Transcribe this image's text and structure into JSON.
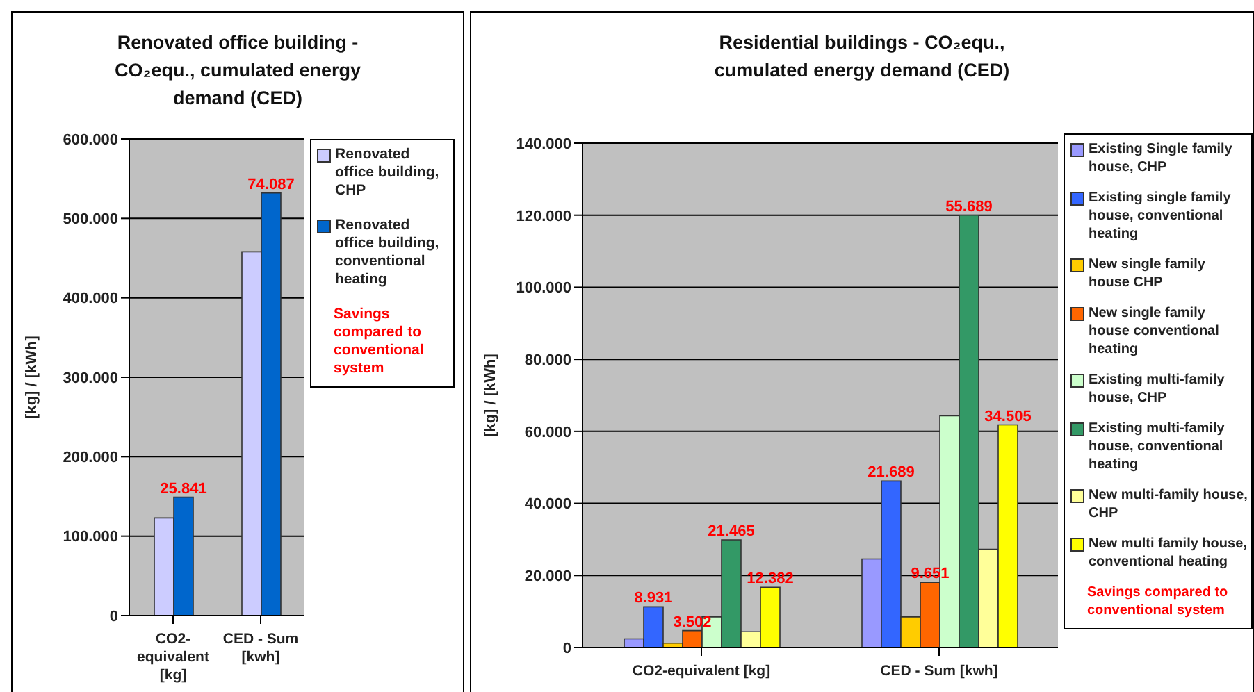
{
  "chart_data": [
    {
      "type": "bar",
      "title": "Renovated office building - CO₂equ., cumulated energy demand (CED)",
      "ylabel": "[kg] / [kWh]",
      "categories": [
        "CO2-equivalent [kg]",
        "CED - Sum [kwh]"
      ],
      "series": [
        {
          "name": "Renovated office building, CHP",
          "color": "#ccccff",
          "values": [
            123000,
            458000
          ]
        },
        {
          "name": "Renovated office building, conventional heating",
          "color": "#0066cc",
          "values": [
            149000,
            532000
          ]
        }
      ],
      "ylim": [
        0,
        600000
      ],
      "yticks": [
        0,
        {
          "value": 100000,
          "label": "100.000"
        },
        {
          "value": 200000,
          "label": "200.000"
        },
        {
          "value": 300000,
          "label": "300.000"
        },
        {
          "value": 400000,
          "label": "400.000"
        },
        {
          "value": 500000,
          "label": "500.000"
        },
        {
          "value": 600000,
          "label": "600.000"
        }
      ],
      "grid": "y",
      "legend": "right",
      "annotations": [
        {
          "text": "25.841",
          "x": "CO2-equivalent [kg]",
          "y": 149000
        },
        {
          "text": "74.087",
          "x": "CED - Sum [kwh]",
          "y": 532000
        },
        "Savings compared to conventional system"
      ]
    },
    {
      "type": "bar",
      "title": "Residential buildings - CO₂equ., cumulated energy demand (CED)",
      "ylabel": "[kg] / [kWh]",
      "categories": [
        "CO2-equivalent [kg]",
        "CED - Sum [kwh]"
      ],
      "series": [
        {
          "name": "Existing Single family house, CHP",
          "color": "#9999ff",
          "values": [
            2400,
            24600
          ]
        },
        {
          "name": "Existing single family house, conventional heating",
          "color": "#3366ff",
          "values": [
            11300,
            46200
          ]
        },
        {
          "name": "New single family house CHP",
          "color": "#ffcc00",
          "values": [
            1200,
            8500
          ]
        },
        {
          "name": "New single family house conventional heating",
          "color": "#ff6600",
          "values": [
            4700,
            18100
          ]
        },
        {
          "name": "Existing multi-family house, CHP",
          "color": "#ccffcc",
          "values": [
            8500,
            64300
          ]
        },
        {
          "name": "Existing multi-family house, conventional heating",
          "color": "#339966",
          "values": [
            29900,
            120000
          ]
        },
        {
          "name": "New multi-family house, CHP",
          "color": "#ffff99",
          "values": [
            4400,
            27300
          ]
        },
        {
          "name": "New multi family house, conventional heating",
          "color": "#ffff00",
          "values": [
            16700,
            61800
          ]
        }
      ],
      "ylim": [
        0,
        140000
      ],
      "yticks": [
        0,
        {
          "value": 20000,
          "label": "20.000"
        },
        {
          "value": 40000,
          "label": "40.000"
        },
        {
          "value": 60000,
          "label": "60.000"
        },
        {
          "value": 80000,
          "label": "80.000"
        },
        {
          "value": 100000,
          "label": "100.000"
        },
        {
          "value": 120000,
          "label": "120.000"
        },
        {
          "value": 140000,
          "label": "140.000"
        }
      ],
      "grid": "y",
      "legend": "right",
      "annotations": [
        "8.931",
        "3.502",
        "21.465",
        "12.382",
        "21.689",
        "9.651",
        "55.689",
        "34.505",
        "Savings compared to conventional system"
      ]
    }
  ]
}
